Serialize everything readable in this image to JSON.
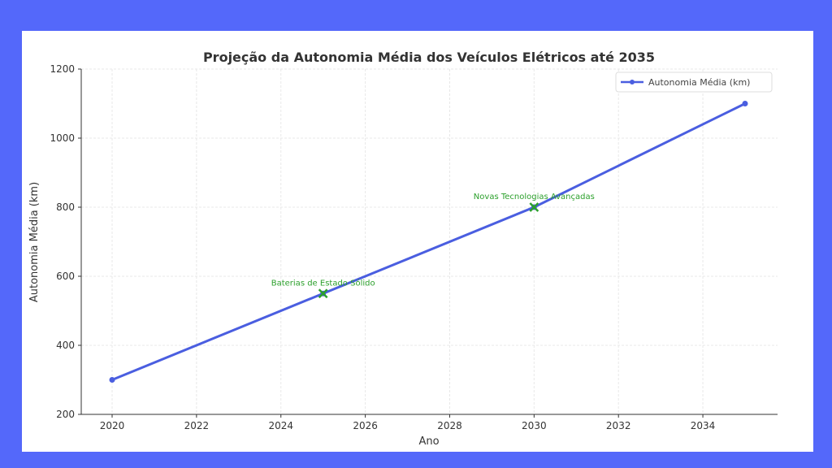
{
  "chart_data": {
    "type": "line",
    "title": "Projeção da Autonomia Média dos Veículos Elétricos até 2035",
    "xlabel": "Ano",
    "ylabel": "Autonomia Média (km)",
    "xlim": [
      2019.3,
      2036.5
    ],
    "ylim": [
      200,
      1200
    ],
    "xticks": [
      2020,
      2022,
      2024,
      2026,
      2028,
      2030,
      2032,
      2034
    ],
    "yticks": [
      200,
      400,
      600,
      800,
      1000,
      1200
    ],
    "grid": true,
    "legend_position": "top-right",
    "series": [
      {
        "name": "Autonomia Média (km)",
        "color": "#4a5ee0",
        "x": [
          2020,
          2025,
          2030,
          2035
        ],
        "y": [
          300,
          550,
          800,
          1100
        ]
      }
    ],
    "annotations": [
      {
        "text": "Baterias de Estado Sólido",
        "x": 2025,
        "y": 550,
        "marker": "x",
        "color": "#2ca02c"
      },
      {
        "text": "Novas Tecnologias Avançadas",
        "x": 2030,
        "y": 800,
        "marker": "x",
        "color": "#2ca02c"
      }
    ]
  },
  "colors": {
    "background": "#5468fa",
    "card": "#ffffff"
  }
}
